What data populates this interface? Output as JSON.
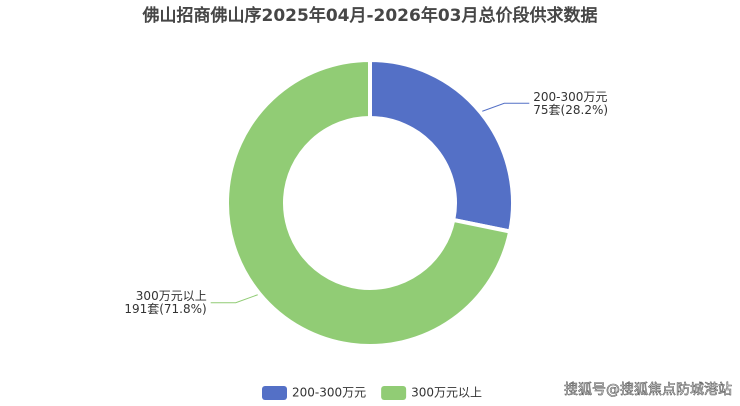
{
  "chart_data": {
    "type": "pie",
    "title": "佛山招商佛山序2025年04月-2026年03月总价段供求数据",
    "categories": [
      "200-300万元",
      "300万元以上"
    ],
    "values": [
      75,
      191
    ],
    "value_labels": [
      "75套(28.2%)",
      "191套(71.8%)"
    ],
    "colors": [
      "#5470c6",
      "#91cc75"
    ],
    "donut": true,
    "legend": "bottom",
    "watermark": "搜狐号@搜狐焦点防城港站"
  }
}
